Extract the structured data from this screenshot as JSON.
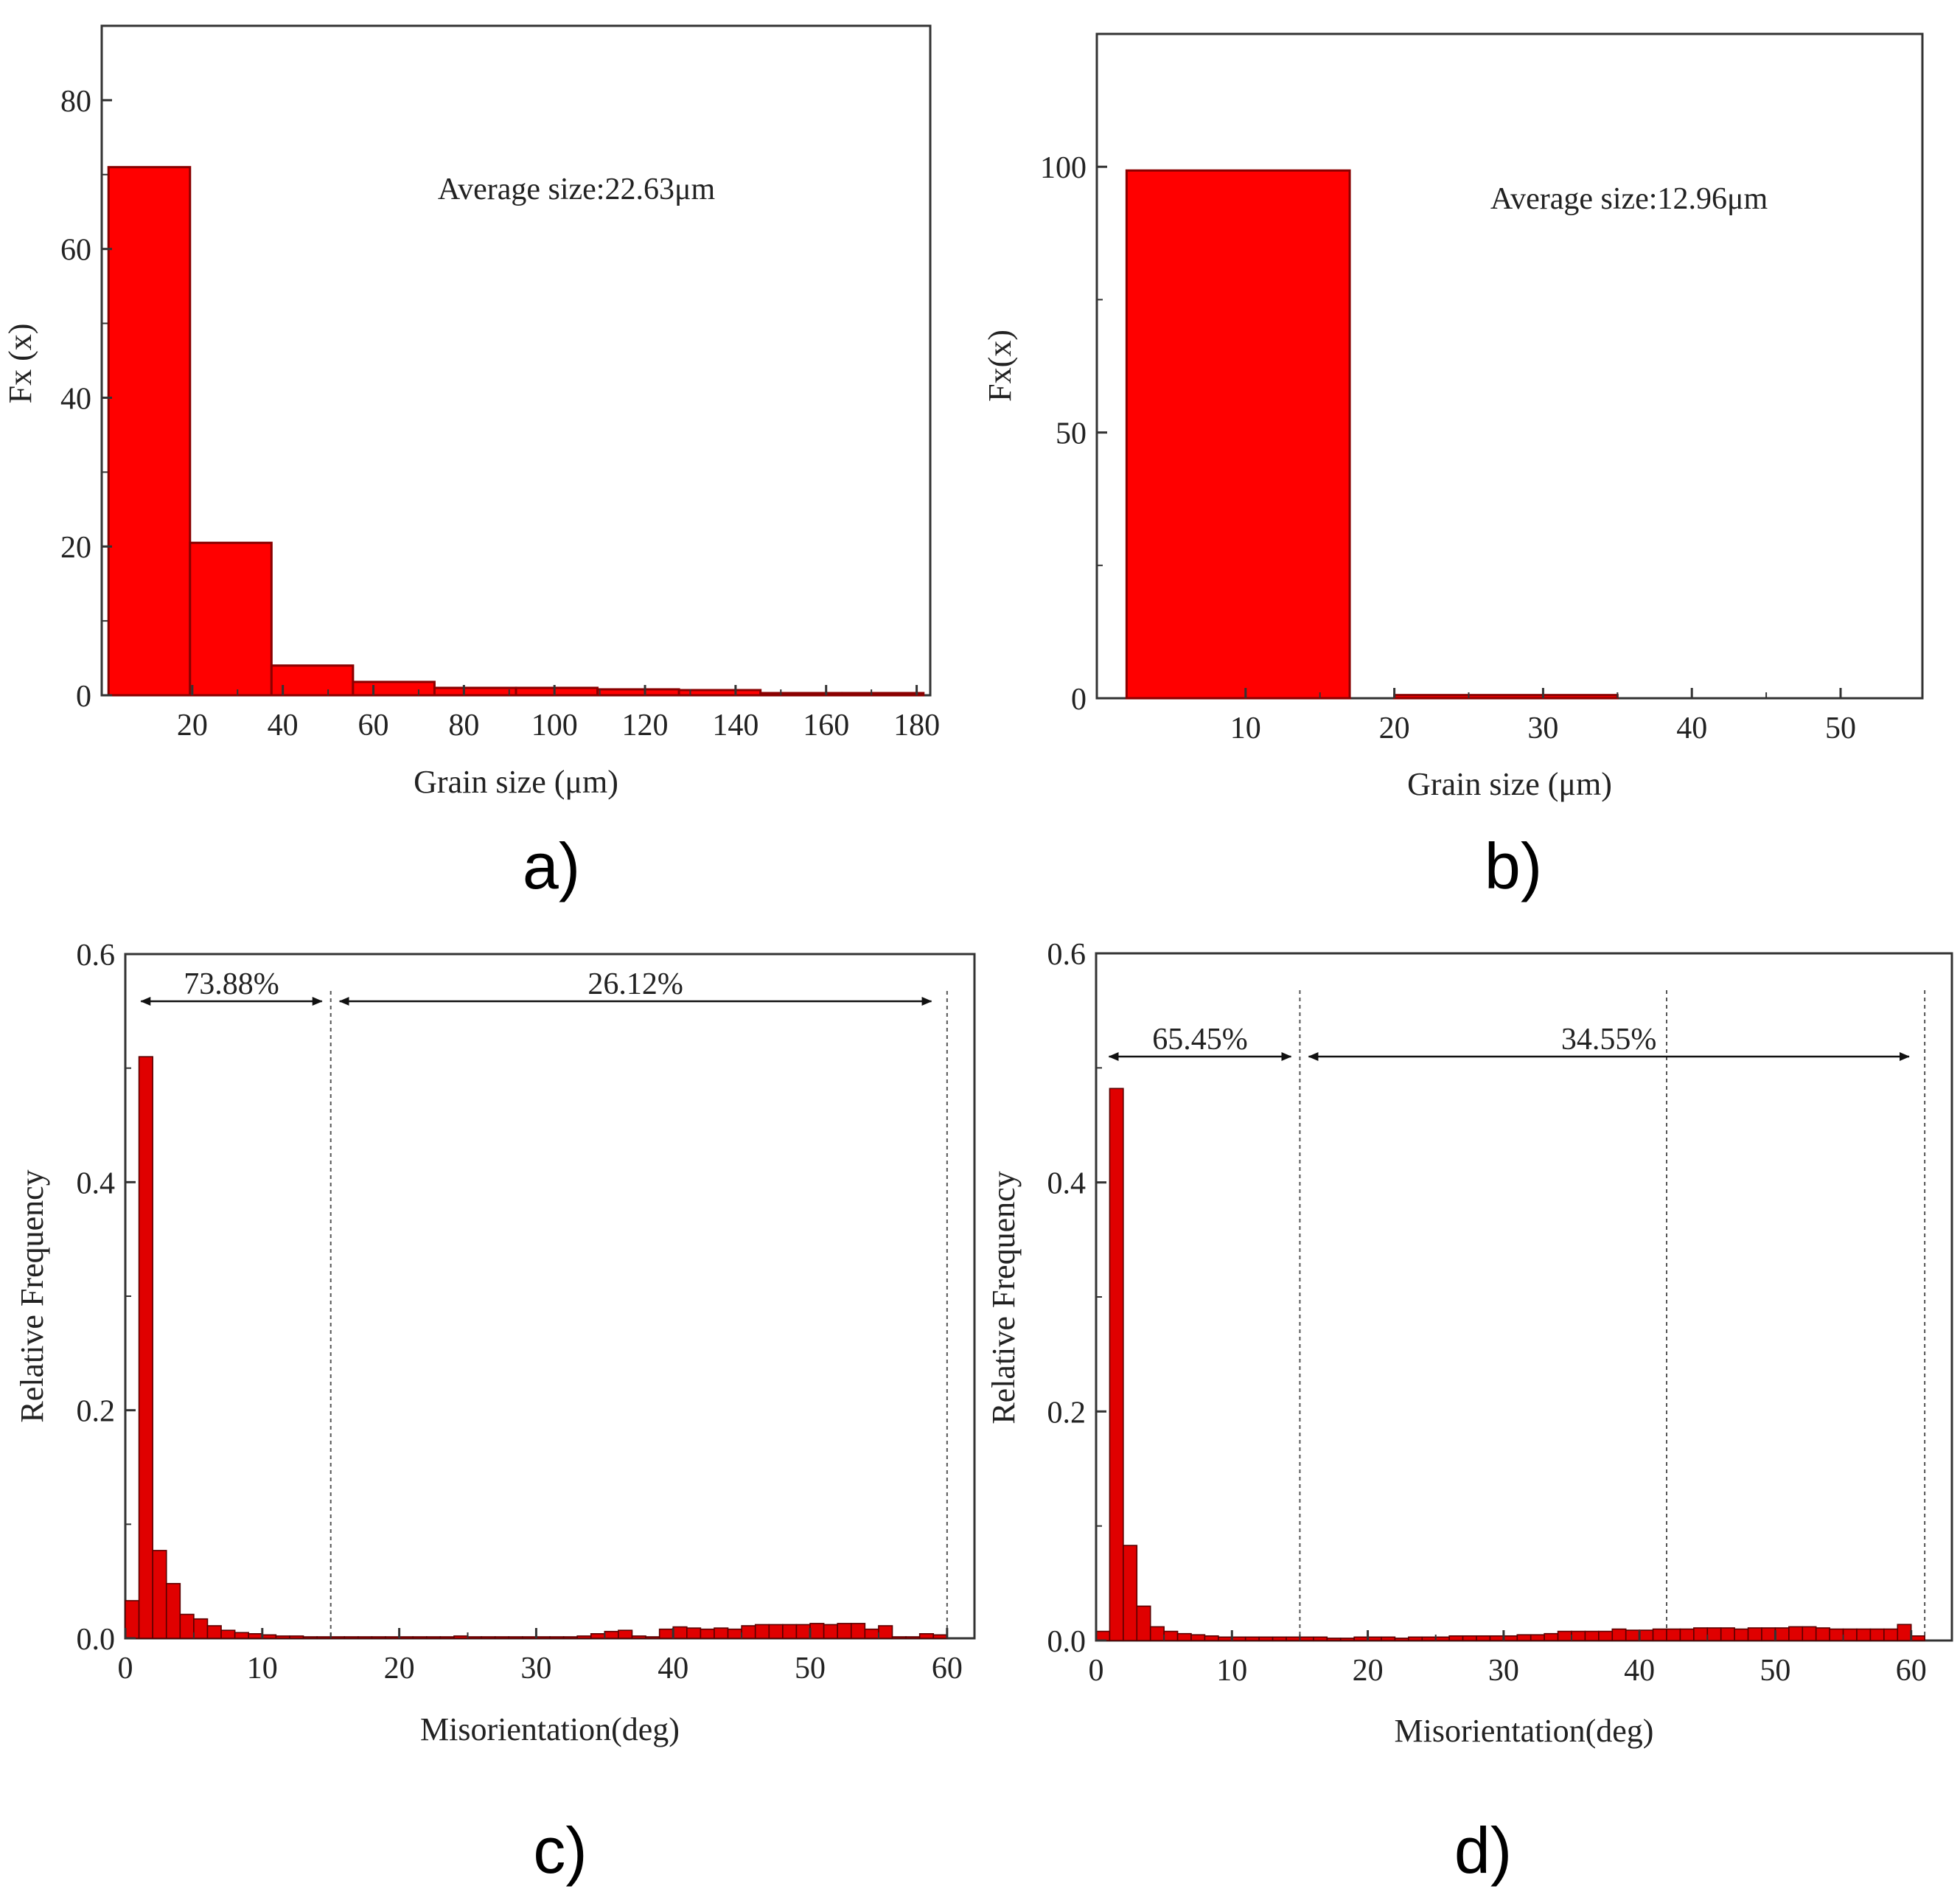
{
  "figure": {
    "panels": [
      "a)",
      "b)",
      "c)",
      "d)"
    ]
  },
  "chart_data": [
    {
      "type": "bar",
      "panel": "a)",
      "xlabel": "Grain size (μm)",
      "ylabel": "Fx (x)",
      "annotation": "Average size:22.63μm",
      "xlim": [
        0,
        183
      ],
      "ylim": [
        0,
        90
      ],
      "xticks": [
        20,
        40,
        60,
        80,
        100,
        120,
        140,
        160,
        180
      ],
      "yticks": [
        0,
        20,
        40,
        60,
        80
      ],
      "bin_width": 18,
      "x": [
        1.5,
        19.5,
        37.5,
        55.5,
        73.5,
        91.5,
        109.5,
        127.5,
        145.5,
        163.5
      ],
      "values": [
        71,
        20.5,
        4,
        1.8,
        1,
        1,
        0.8,
        0.7,
        0.3,
        0.3
      ],
      "color": "#ff0000"
    },
    {
      "type": "bar",
      "panel": "b)",
      "xlabel": "Grain size (μm)",
      "ylabel": "Fx(x)",
      "annotation": "Average size:12.96μm",
      "xlim": [
        0,
        55.5
      ],
      "ylim": [
        0,
        125
      ],
      "xticks": [
        10,
        20,
        30,
        40,
        50
      ],
      "yticks": [
        0,
        50,
        100
      ],
      "bin_width": 15,
      "x": [
        2,
        20
      ],
      "values": [
        99.3,
        0.6
      ],
      "color": "#ff0000"
    },
    {
      "type": "bar",
      "panel": "c)",
      "xlabel": "Misorientation(deg)",
      "ylabel": "Relative Frequency",
      "xlim": [
        0,
        62
      ],
      "ylim": [
        0,
        0.6
      ],
      "xticks": [
        0,
        10,
        20,
        30,
        40,
        50,
        60
      ],
      "yticks": [
        0.0,
        0.2,
        0.4,
        0.6
      ],
      "bin_width": 1,
      "x": [
        0,
        1,
        2,
        3,
        4,
        5,
        6,
        7,
        8,
        9,
        10,
        11,
        12,
        13,
        14,
        15,
        16,
        17,
        18,
        19,
        20,
        21,
        22,
        23,
        24,
        25,
        26,
        27,
        28,
        29,
        30,
        31,
        32,
        33,
        34,
        35,
        36,
        37,
        38,
        39,
        40,
        41,
        42,
        43,
        44,
        45,
        46,
        47,
        48,
        49,
        50,
        51,
        52,
        53,
        54,
        55,
        56,
        57,
        58,
        59
      ],
      "values": [
        0.033,
        0.51,
        0.077,
        0.048,
        0.021,
        0.017,
        0.011,
        0.007,
        0.005,
        0.004,
        0.003,
        0.002,
        0.002,
        0.001,
        0.001,
        0.001,
        0.001,
        0.001,
        0.001,
        0.001,
        0.001,
        0.001,
        0.001,
        0.001,
        0.002,
        0.001,
        0.001,
        0.001,
        0.001,
        0.001,
        0.001,
        0.001,
        0.001,
        0.002,
        0.004,
        0.006,
        0.007,
        0.002,
        0.001,
        0.008,
        0.01,
        0.009,
        0.008,
        0.009,
        0.008,
        0.011,
        0.012,
        0.012,
        0.012,
        0.012,
        0.013,
        0.012,
        0.013,
        0.013,
        0.008,
        0.011,
        0.001,
        0.001,
        0.004,
        0.003
      ],
      "boundaries": [
        15,
        60
      ],
      "ranges": [
        {
          "from": 0.5,
          "to": 15,
          "label": "73.88%"
        },
        {
          "from": 15,
          "to": 59.5,
          "label": "26.12%"
        }
      ],
      "color": "#e00000"
    },
    {
      "type": "bar",
      "panel": "d)",
      "xlabel": "Misorientation(deg)",
      "ylabel": "Relative Frequency",
      "xlim": [
        0,
        63
      ],
      "ylim": [
        0,
        0.6
      ],
      "xticks": [
        0,
        10,
        20,
        30,
        40,
        50,
        60
      ],
      "yticks": [
        0.0,
        0.2,
        0.4,
        0.6
      ],
      "bin_width": 1,
      "x": [
        0,
        1,
        2,
        3,
        4,
        5,
        6,
        7,
        8,
        9,
        10,
        11,
        12,
        13,
        14,
        15,
        16,
        17,
        18,
        19,
        20,
        21,
        22,
        23,
        24,
        25,
        26,
        27,
        28,
        29,
        30,
        31,
        32,
        33,
        34,
        35,
        36,
        37,
        38,
        39,
        40,
        41,
        42,
        43,
        44,
        45,
        46,
        47,
        48,
        49,
        50,
        51,
        52,
        53,
        54,
        55,
        56,
        57,
        58,
        59,
        60
      ],
      "values": [
        0.008,
        0.482,
        0.083,
        0.03,
        0.012,
        0.008,
        0.006,
        0.005,
        0.004,
        0.003,
        0.003,
        0.003,
        0.003,
        0.003,
        0.003,
        0.003,
        0.003,
        0.002,
        0.002,
        0.003,
        0.003,
        0.003,
        0.002,
        0.003,
        0.003,
        0.003,
        0.004,
        0.004,
        0.004,
        0.004,
        0.004,
        0.005,
        0.005,
        0.006,
        0.008,
        0.008,
        0.008,
        0.008,
        0.01,
        0.009,
        0.009,
        0.01,
        0.01,
        0.01,
        0.011,
        0.011,
        0.011,
        0.01,
        0.011,
        0.011,
        0.011,
        0.012,
        0.012,
        0.011,
        0.01,
        0.01,
        0.01,
        0.01,
        0.01,
        0.014,
        0.004
      ],
      "boundaries": [
        15,
        42,
        61
      ],
      "ranges": [
        {
          "from": 0.3,
          "to": 15,
          "label": "65.45%"
        },
        {
          "from": 15,
          "to": 60.5,
          "label": "34.55%"
        }
      ],
      "color": "#e00000"
    }
  ]
}
